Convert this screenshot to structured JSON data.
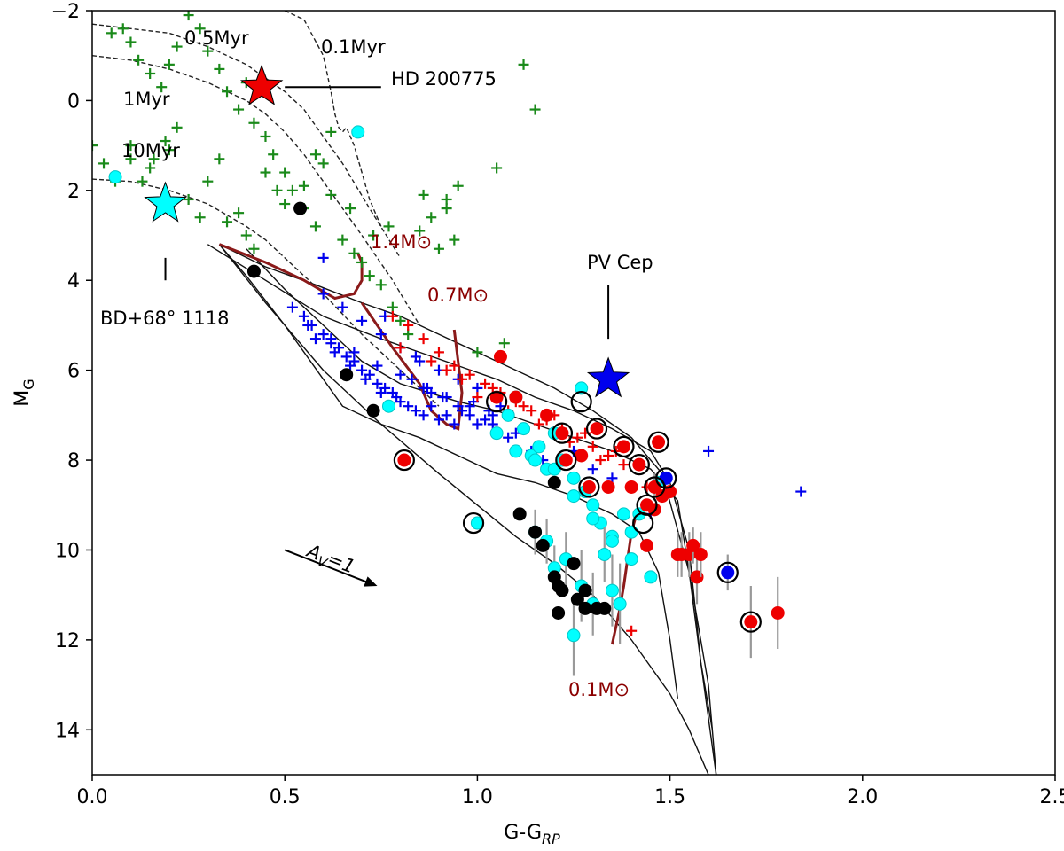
{
  "chart_data": {
    "type": "scatter",
    "title": "",
    "xlabel": "G-G",
    "xlabel_sub": "RP",
    "ylabel": "M",
    "ylabel_sub": "G",
    "xlim": [
      0.0,
      2.5
    ],
    "ylim": [
      15,
      -2
    ],
    "y_inverted": true,
    "grid": false,
    "x_ticks": [
      "0.0",
      "0.5",
      "1.0",
      "1.5",
      "2.0",
      "2.5"
    ],
    "y_ticks": [
      "−2",
      "0",
      "2",
      "4",
      "6",
      "8",
      "10",
      "12",
      "14"
    ],
    "colors": {
      "field_green": "#1a8a1a",
      "blue_cross": "#0000ee",
      "red_cross": "#ee0000",
      "cyan": "#00ffff",
      "black": "#000000",
      "red_dot": "#ee0000",
      "blue_dot": "#0000ee",
      "mass_track": "#8b1a1a",
      "errorbar": "#999999"
    },
    "isochrones_dashed": [
      {
        "label": "0.1Myr",
        "x": [
          0.5,
          0.55,
          0.6,
          0.62,
          0.63,
          0.64,
          0.65,
          0.66,
          0.68,
          0.7,
          0.72,
          0.75
        ],
        "y": [
          -2.0,
          -1.8,
          -1.0,
          -0.2,
          0.3,
          0.6,
          0.7,
          0.6,
          1.0,
          1.6,
          2.2,
          2.8
        ]
      },
      {
        "label": "0.5Myr",
        "x": [
          0.0,
          0.1,
          0.2,
          0.3,
          0.4,
          0.45,
          0.5,
          0.55,
          0.6,
          0.65,
          0.72,
          0.8
        ],
        "y": [
          -1.7,
          -1.6,
          -1.5,
          -1.2,
          -0.8,
          -0.5,
          -0.2,
          0.2,
          0.8,
          1.4,
          2.4,
          3.5
        ]
      },
      {
        "label": "1Myr",
        "x": [
          0.0,
          0.1,
          0.2,
          0.3,
          0.4,
          0.45,
          0.5,
          0.55,
          0.6,
          0.65,
          0.7,
          0.78,
          0.85
        ],
        "y": [
          -1.0,
          -0.9,
          -0.7,
          -0.4,
          0.0,
          0.3,
          0.7,
          1.2,
          1.8,
          2.4,
          3.0,
          4.0,
          5.0
        ]
      },
      {
        "label": "10Myr",
        "x": [
          0.0,
          0.1,
          0.2,
          0.3,
          0.4,
          0.45,
          0.5,
          0.6,
          0.7,
          0.8,
          0.9
        ],
        "y": [
          1.75,
          1.8,
          2.0,
          2.3,
          2.8,
          3.1,
          3.5,
          4.3,
          5.2,
          6.0,
          6.8
        ]
      }
    ],
    "isochrones_solid": [
      {
        "x": [
          0.33,
          0.4,
          0.5,
          0.6,
          0.65,
          0.75,
          0.85,
          0.95,
          1.05,
          1.15,
          1.25,
          1.35,
          1.42,
          1.47,
          1.5,
          1.52
        ],
        "y": [
          3.2,
          3.9,
          5.0,
          6.2,
          6.8,
          7.2,
          7.5,
          7.9,
          8.3,
          8.5,
          8.8,
          9.2,
          9.6,
          10.5,
          12.0,
          13.3
        ]
      },
      {
        "x": [
          0.4,
          0.5,
          0.6,
          0.7,
          0.8,
          0.95,
          1.05,
          1.15,
          1.25,
          1.35,
          1.45,
          1.52,
          1.55,
          1.58,
          1.61
        ],
        "y": [
          3.3,
          4.2,
          5.0,
          5.8,
          6.3,
          6.7,
          6.9,
          7.2,
          7.5,
          7.8,
          8.2,
          8.9,
          10.5,
          12.5,
          14.0
        ]
      },
      {
        "x": [
          0.3,
          0.45,
          0.6,
          0.75,
          0.85,
          0.95,
          1.05,
          1.15,
          1.25,
          1.35,
          1.45,
          1.5,
          1.55,
          1.58,
          1.62
        ],
        "y": [
          3.2,
          4.0,
          4.8,
          5.3,
          5.6,
          5.9,
          6.2,
          6.6,
          6.9,
          7.3,
          7.8,
          8.5,
          10.0,
          12.5,
          15.0
        ]
      },
      {
        "x": [
          0.33,
          0.45,
          0.6,
          0.75,
          0.9,
          1.0,
          1.1,
          1.2,
          1.3,
          1.4,
          1.5,
          1.55,
          1.6
        ],
        "y": [
          3.2,
          4.5,
          6.0,
          7.2,
          8.3,
          9.0,
          9.7,
          10.3,
          11.0,
          12.0,
          13.2,
          14.0,
          15.0
        ]
      },
      {
        "x": [
          0.33,
          0.45,
          0.58,
          0.7,
          0.8,
          0.9,
          1.0,
          1.1,
          1.2,
          1.3,
          1.4,
          1.48,
          1.55,
          1.6,
          1.62
        ],
        "y": [
          3.2,
          3.7,
          4.1,
          4.5,
          4.8,
          5.2,
          5.6,
          6.0,
          6.4,
          6.9,
          7.5,
          8.3,
          10.5,
          13.0,
          15.0
        ]
      }
    ],
    "mass_tracks": [
      {
        "label": "1.4M⊙",
        "x": [
          0.33,
          0.45,
          0.55,
          0.63,
          0.68,
          0.7,
          0.7,
          0.69
        ],
        "y": [
          3.2,
          3.6,
          4.0,
          4.4,
          4.3,
          4.0,
          3.6,
          3.4
        ]
      },
      {
        "label": "0.7M⊙",
        "x": [
          0.7,
          0.78,
          0.85,
          0.88,
          0.92,
          0.95,
          0.96,
          0.94
        ],
        "y": [
          4.5,
          5.5,
          6.3,
          6.9,
          7.2,
          7.3,
          6.5,
          5.1
        ]
      },
      {
        "label": "0.1M⊙",
        "x": [
          1.35,
          1.36,
          1.37,
          1.38,
          1.39,
          1.4,
          1.41
        ],
        "y": [
          12.1,
          11.7,
          11.3,
          10.8,
          10.2,
          9.6,
          9.3
        ]
      }
    ],
    "series": [
      {
        "name": "field-green-crosses",
        "marker": "plus",
        "color": "#1a8a1a",
        "x": [
          0.05,
          0.08,
          0.1,
          0.12,
          0.15,
          0.18,
          0.2,
          0.22,
          0.25,
          0.28,
          0.3,
          0.33,
          0.35,
          0.38,
          0.4,
          0.42,
          0.45,
          0.47,
          0.5,
          0.52,
          0.55,
          0.58,
          0.6,
          0.62,
          0.65,
          0.68,
          0.7,
          0.72,
          0.75,
          0.78,
          0.8,
          0.82,
          0.85,
          0.88,
          0.9,
          0.92,
          0.95,
          1.0,
          1.05,
          1.07,
          1.12,
          1.15,
          0.1,
          0.15,
          0.2,
          0.3,
          0.25,
          0.35,
          0.4,
          0.45,
          0.5,
          0.55,
          0.28,
          0.33,
          0.38,
          0.42,
          0.48,
          0.58,
          0.62,
          0.67,
          0.73,
          0.77,
          0.86,
          0.92,
          0.94,
          0.0,
          0.03,
          0.06,
          0.1,
          0.13,
          0.16,
          0.19,
          0.22
        ],
        "y": [
          -1.5,
          -1.6,
          -1.3,
          -0.9,
          -0.6,
          -0.3,
          -0.8,
          -1.2,
          -1.9,
          -1.6,
          -1.1,
          -0.7,
          -0.2,
          0.2,
          -0.4,
          0.5,
          0.8,
          1.2,
          1.6,
          2.0,
          2.4,
          2.8,
          1.4,
          2.1,
          3.1,
          3.4,
          3.6,
          3.9,
          4.1,
          4.6,
          4.9,
          5.2,
          2.9,
          2.6,
          3.3,
          2.2,
          1.9,
          5.6,
          1.5,
          5.4,
          -0.8,
          0.2,
          1.3,
          1.5,
          1.1,
          1.8,
          2.2,
          2.7,
          3.0,
          1.6,
          2.3,
          1.9,
          2.6,
          1.3,
          2.5,
          3.3,
          2.0,
          1.2,
          0.7,
          2.4,
          3.0,
          2.8,
          2.1,
          2.4,
          3.1,
          1.0,
          1.4,
          1.8,
          1.0,
          1.8,
          1.3,
          0.9,
          0.6
        ]
      },
      {
        "name": "blue-crosses",
        "marker": "plus",
        "color": "#0000ee",
        "x": [
          0.52,
          0.55,
          0.57,
          0.6,
          0.62,
          0.64,
          0.66,
          0.68,
          0.7,
          0.72,
          0.74,
          0.76,
          0.78,
          0.8,
          0.82,
          0.84,
          0.86,
          0.88,
          0.9,
          0.92,
          0.94,
          0.96,
          0.98,
          1.0,
          1.02,
          1.04,
          1.06,
          0.58,
          0.63,
          0.67,
          0.71,
          0.75,
          0.79,
          0.83,
          0.87,
          0.91,
          0.95,
          0.99,
          1.03,
          0.6,
          0.65,
          0.7,
          0.75,
          0.8,
          0.85,
          0.9,
          0.95,
          1.0,
          0.56,
          0.62,
          0.68,
          0.74,
          0.8,
          0.86,
          0.92,
          0.98,
          1.04,
          1.08,
          1.1,
          1.14,
          1.17,
          1.25,
          1.3,
          1.35,
          1.4,
          1.45,
          1.6,
          1.84,
          0.6,
          0.76,
          0.84,
          0.88
        ],
        "y": [
          4.6,
          4.8,
          5.0,
          5.2,
          5.4,
          5.5,
          5.7,
          5.8,
          6.0,
          6.1,
          6.3,
          6.4,
          6.5,
          6.7,
          6.8,
          6.9,
          7.0,
          6.8,
          7.1,
          7.0,
          7.2,
          6.9,
          7.0,
          7.2,
          7.1,
          7.0,
          6.8,
          5.3,
          5.6,
          5.9,
          6.2,
          6.5,
          6.6,
          6.2,
          6.4,
          6.6,
          6.8,
          6.7,
          6.9,
          4.3,
          4.6,
          4.9,
          5.2,
          5.5,
          5.8,
          6.0,
          6.2,
          6.4,
          5.0,
          5.3,
          5.6,
          5.9,
          6.1,
          6.4,
          6.6,
          6.8,
          7.2,
          7.5,
          7.4,
          7.8,
          8.0,
          7.8,
          8.2,
          8.4,
          8.6,
          9.2,
          7.8,
          8.7,
          3.5,
          4.8,
          5.7,
          6.5
        ]
      },
      {
        "name": "red-crosses",
        "marker": "plus",
        "color": "#ee0000",
        "x": [
          0.78,
          0.82,
          0.86,
          0.9,
          0.94,
          0.98,
          1.02,
          1.06,
          1.1,
          1.14,
          1.18,
          1.22,
          1.26,
          1.3,
          1.34,
          1.38,
          0.8,
          0.88,
          0.96,
          1.04,
          1.12,
          1.2,
          1.28,
          1.36,
          1.44,
          0.92,
          1.0,
          1.08,
          1.16,
          1.24,
          1.32,
          1.4
        ],
        "y": [
          4.8,
          5.0,
          5.3,
          5.6,
          5.9,
          6.1,
          6.3,
          6.5,
          6.7,
          6.9,
          7.1,
          7.3,
          7.5,
          7.7,
          7.9,
          8.1,
          5.5,
          5.8,
          6.2,
          6.4,
          6.8,
          7.0,
          7.4,
          7.8,
          8.6,
          6.0,
          6.6,
          6.9,
          7.2,
          7.6,
          8.0,
          11.8
        ]
      },
      {
        "name": "cyan-circles",
        "marker": "circle",
        "color": "#00ffff",
        "x": [
          0.06,
          0.69,
          0.77,
          1.0,
          1.05,
          1.08,
          1.1,
          1.12,
          1.14,
          1.16,
          1.18,
          1.2,
          1.22,
          1.25,
          1.28,
          1.3,
          1.32,
          1.35,
          1.38,
          1.4,
          1.1,
          1.15,
          1.2,
          1.25,
          1.3,
          1.35,
          1.4,
          1.45,
          1.18,
          1.23,
          1.27,
          1.33,
          1.37,
          1.42,
          1.47,
          1.15,
          1.25,
          1.3,
          1.35,
          1.2,
          1.27
        ],
        "y": [
          1.7,
          0.7,
          6.8,
          9.4,
          7.4,
          7.0,
          6.6,
          7.3,
          7.9,
          7.7,
          8.2,
          7.4,
          8.0,
          8.4,
          8.7,
          9.0,
          9.4,
          9.7,
          9.2,
          9.6,
          7.8,
          8.0,
          8.2,
          8.8,
          9.3,
          9.8,
          10.2,
          10.6,
          9.8,
          10.2,
          10.8,
          10.1,
          11.2,
          9.2,
          8.5,
          9.6,
          11.9,
          11.2,
          10.9,
          10.4,
          6.4
        ],
        "err_y": [
          0,
          0,
          0,
          0,
          0,
          0,
          0,
          0,
          0,
          0,
          0,
          0,
          0,
          0,
          0,
          0,
          0,
          0,
          0,
          0,
          0,
          0,
          0,
          0,
          0,
          0,
          0,
          0,
          0.5,
          0.6,
          0.8,
          0.6,
          0.9,
          0,
          0,
          0.5,
          0.9,
          0.7,
          0.8,
          0.5,
          0
        ]
      },
      {
        "name": "black-circles",
        "marker": "circle",
        "color": "#000000",
        "x": [
          0.42,
          0.54,
          0.66,
          0.73,
          1.11,
          1.15,
          1.17,
          1.2,
          1.21,
          1.22,
          1.25,
          1.26,
          1.28,
          1.31,
          1.33,
          1.21,
          1.28,
          1.2
        ],
        "y": [
          3.8,
          2.4,
          6.1,
          6.9,
          9.2,
          9.6,
          9.9,
          10.6,
          11.4,
          10.9,
          10.3,
          11.1,
          11.3,
          11.3,
          11.3,
          10.8,
          10.9,
          8.5
        ]
      },
      {
        "name": "red-dots",
        "marker": "circle",
        "color": "#ee0000",
        "x": [
          0.81,
          1.05,
          1.06,
          1.1,
          1.18,
          1.22,
          1.23,
          1.27,
          1.29,
          1.31,
          1.34,
          1.38,
          1.4,
          1.42,
          1.44,
          1.46,
          1.47,
          1.48,
          1.5,
          1.52,
          1.53,
          1.55,
          1.56,
          1.57,
          1.58,
          1.71,
          1.78,
          1.44,
          1.46
        ],
        "y": [
          8.0,
          6.6,
          5.7,
          6.6,
          7.0,
          7.4,
          8.0,
          7.9,
          8.6,
          7.3,
          8.6,
          7.7,
          8.6,
          8.1,
          9.0,
          8.6,
          7.6,
          8.8,
          8.7,
          10.1,
          10.1,
          10.1,
          9.9,
          10.6,
          10.1,
          11.6,
          11.4,
          9.9,
          9.1
        ],
        "err_y": [
          0,
          0,
          0,
          0,
          0,
          0,
          0,
          0,
          0,
          0,
          0,
          0,
          0,
          0,
          0,
          0.3,
          0,
          0,
          0,
          0.5,
          0.5,
          0.5,
          0.4,
          0.6,
          0.5,
          0.8,
          0.8,
          0,
          0
        ]
      },
      {
        "name": "blue-dots",
        "marker": "circle",
        "color": "#0000ee",
        "x": [
          1.49,
          1.65
        ],
        "y": [
          8.4,
          10.5
        ],
        "err_y": [
          0,
          0.4
        ]
      },
      {
        "name": "ringed-sources",
        "marker": "ring",
        "color": "#000000",
        "x": [
          0.81,
          0.99,
          1.05,
          1.22,
          1.23,
          1.27,
          1.29,
          1.31,
          1.38,
          1.42,
          1.44,
          1.46,
          1.47,
          1.49,
          1.43,
          1.65,
          1.71
        ],
        "y": [
          8.0,
          9.4,
          6.7,
          7.4,
          8.0,
          6.7,
          8.6,
          7.3,
          7.7,
          8.1,
          9.0,
          8.6,
          7.6,
          8.4,
          9.4,
          10.5,
          11.6
        ]
      },
      {
        "name": "HD 200775",
        "marker": "star",
        "color": "#ee0000",
        "x": [
          0.44
        ],
        "y": [
          -0.3
        ]
      },
      {
        "name": "BD+68° 1118",
        "marker": "star",
        "color": "#00ffff",
        "x": [
          0.19
        ],
        "y": [
          2.3
        ]
      },
      {
        "name": "PV Cep",
        "marker": "star",
        "color": "#0000ee",
        "x": [
          1.34
        ],
        "y": [
          6.2
        ]
      }
    ],
    "annotations": {
      "iso_01": "0.1Myr",
      "iso_05": "0.5Myr",
      "iso_1": "1Myr",
      "iso_10": "10Myr",
      "hd": "HD 200775",
      "bd": "BD+68° 1118",
      "pv": "PV Cep",
      "m14": "1.4M⊙",
      "m07": "0.7M⊙",
      "m01": "0.1M⊙",
      "av_prefix": "A",
      "av_sub": "V",
      "av_suffix": "=1"
    },
    "extinction_vector": {
      "x0": 0.5,
      "y0": 10.0,
      "dx": 0.24,
      "dy": 0.8
    }
  }
}
